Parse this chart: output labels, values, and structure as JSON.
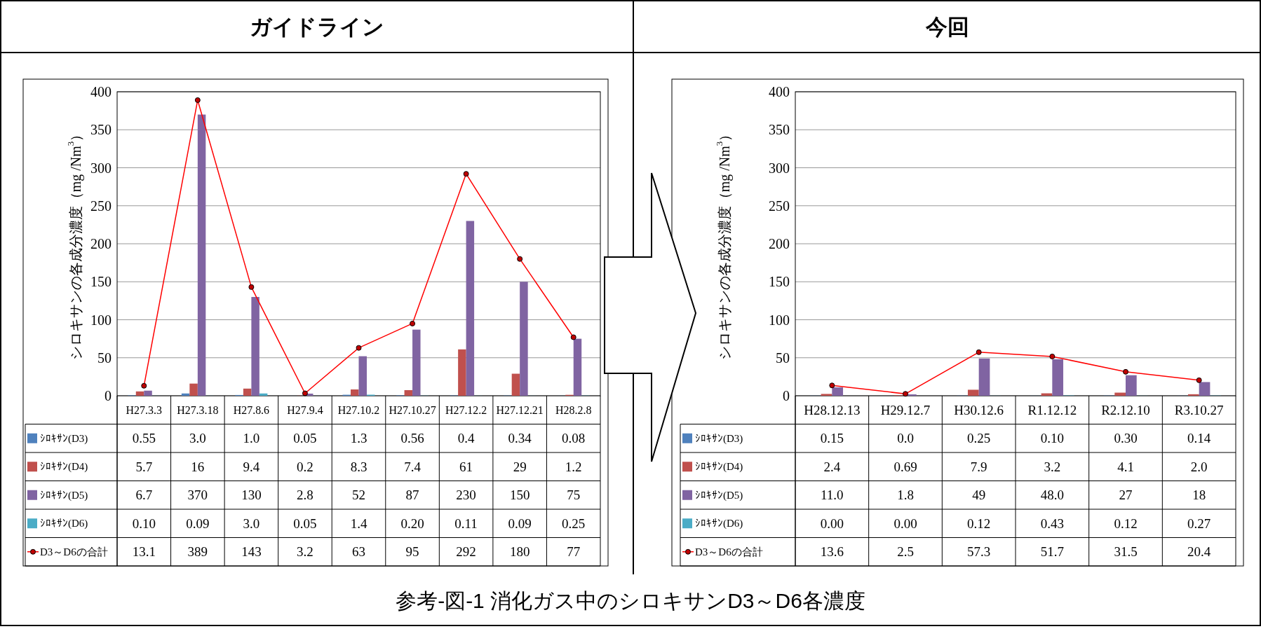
{
  "chart_data": [
    {
      "type": "bar",
      "title": "ガイドライン",
      "ylabel": "シロキサンの各成分濃度（mg /Nm$^{3}$）",
      "categories": [
        "H27.3.3",
        "H27.3.18",
        "H27.8.6",
        "H27.9.4",
        "H27.10.2",
        "H27.10.27",
        "H27.12.2",
        "H27.12.21",
        "H28.2.8"
      ],
      "ylim": [
        0,
        400
      ],
      "yticks": [
        0,
        50,
        100,
        150,
        200,
        250,
        300,
        350,
        400
      ],
      "grid": "y",
      "legend": "bottom",
      "series": [
        {
          "name": "ｼﾛｷｻﾝ(D3)",
          "color": "#4f81bd",
          "values": [
            0.55,
            3.0,
            1.0,
            0.05,
            1.3,
            0.56,
            0.4,
            0.34,
            0.08
          ],
          "value_labels": [
            "0.55",
            "3.0",
            "1.0",
            "0.05",
            "1.3",
            "0.56",
            "0.4",
            "0.34",
            "0.08"
          ]
        },
        {
          "name": "ｼﾛｷｻﾝ(D4)",
          "color": "#c0504d",
          "values": [
            5.7,
            16,
            9.4,
            0.2,
            8.3,
            7.4,
            61,
            29,
            1.2
          ],
          "value_labels": [
            "5.7",
            "16",
            "9.4",
            "0.2",
            "8.3",
            "7.4",
            "61",
            "29",
            "1.2"
          ]
        },
        {
          "name": "ｼﾛｷｻﾝ(D5)",
          "color": "#8064a2",
          "values": [
            6.7,
            370,
            130,
            2.8,
            52,
            87,
            230,
            150,
            75
          ],
          "value_labels": [
            "6.7",
            "370",
            "130",
            "2.8",
            "52",
            "87",
            "230",
            "150",
            "75"
          ]
        },
        {
          "name": "ｼﾛｷｻﾝ(D6)",
          "color": "#4bacc6",
          "values": [
            0.1,
            0.09,
            3.0,
            0.05,
            1.4,
            0.2,
            0.11,
            0.09,
            0.25
          ],
          "value_labels": [
            "0.10",
            "0.09",
            "3.0",
            "0.05",
            "1.4",
            "0.20",
            "0.11",
            "0.09",
            "0.25"
          ]
        },
        {
          "name": "D3～D6の合計",
          "type": "line",
          "color": "#ff0000",
          "marker": "circle",
          "values": [
            13.1,
            389,
            143,
            3.2,
            63,
            95,
            292,
            180,
            77
          ],
          "value_labels": [
            "13.1",
            "389",
            "143",
            "3.2",
            "63",
            "95",
            "292",
            "180",
            "77"
          ]
        }
      ],
      "annotations": [
        "参考-図-1  消化ガス中のシロキサンD3～D6各濃度"
      ]
    },
    {
      "type": "bar",
      "title": "今回",
      "ylabel": "シロキサンの各成分濃度（mg /Nm$^{3}$）",
      "categories": [
        "H28.12.13",
        "H29.12.7",
        "H30.12.6",
        "R1.12.12",
        "R2.12.10",
        "R3.10.27"
      ],
      "ylim": [
        0,
        400
      ],
      "yticks": [
        0,
        50,
        100,
        150,
        200,
        250,
        300,
        350,
        400
      ],
      "grid": "y",
      "legend": "bottom",
      "series": [
        {
          "name": "ｼﾛｷｻﾝ(D3)",
          "color": "#4f81bd",
          "values": [
            0.15,
            0.0,
            0.25,
            0.1,
            0.3,
            0.14
          ],
          "value_labels": [
            "0.15",
            "0.0",
            "0.25",
            "0.10",
            "0.30",
            "0.14"
          ]
        },
        {
          "name": "ｼﾛｷｻﾝ(D4)",
          "color": "#c0504d",
          "values": [
            2.4,
            0.69,
            7.9,
            3.2,
            4.1,
            2.0
          ],
          "value_labels": [
            "2.4",
            "0.69",
            "7.9",
            "3.2",
            "4.1",
            "2.0"
          ]
        },
        {
          "name": "ｼﾛｷｻﾝ(D5)",
          "color": "#8064a2",
          "values": [
            11.0,
            1.8,
            49,
            48.0,
            27,
            18
          ],
          "value_labels": [
            "11.0",
            "1.8",
            "49",
            "48.0",
            "27",
            "18"
          ]
        },
        {
          "name": "ｼﾛｷｻﾝ(D6)",
          "color": "#4bacc6",
          "values": [
            0.0,
            0.0,
            0.12,
            0.43,
            0.12,
            0.27
          ],
          "value_labels": [
            "0.00",
            "0.00",
            "0.12",
            "0.43",
            "0.12",
            "0.27"
          ]
        },
        {
          "name": "D3～D6の合計",
          "type": "line",
          "color": "#ff0000",
          "marker": "circle",
          "values": [
            13.6,
            2.5,
            57.3,
            51.7,
            31.5,
            20.4
          ],
          "value_labels": [
            "13.6",
            "2.5",
            "57.3",
            "51.7",
            "31.5",
            "20.4"
          ]
        }
      ]
    }
  ]
}
